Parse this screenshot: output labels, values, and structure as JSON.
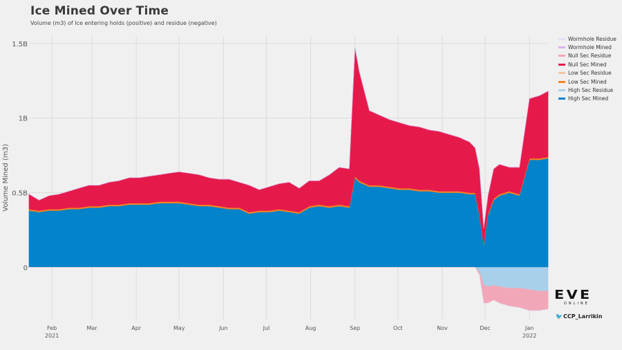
{
  "title": "Ice Mined Over Time",
  "subtitle": "Volume (m3) of Ice entering holds (positive) and residue (negative)",
  "credit": {
    "logo_text": "EVE",
    "logo_sub": "ONLINE",
    "twitter_handle": "CCP_Larrikin",
    "icon": "twitter-bird-icon"
  },
  "chart_data": {
    "type": "area",
    "title": "Ice Mined Over Time",
    "ylabel": "Volume Mined (m3)",
    "ylim": [
      -0.35,
      1.55
    ],
    "y_unit": "billions m3",
    "y_ticks": [
      {
        "value": 1.5,
        "label": "1.5B"
      },
      {
        "value": 1.0,
        "label": "1B"
      },
      {
        "value": 0.5,
        "label": "0.5B"
      },
      {
        "value": 0,
        "label": "0"
      }
    ],
    "x_range": [
      "2021-01-16",
      "2022-01-14"
    ],
    "x_ticks": [
      {
        "date": "2021-02-01",
        "label": "Feb",
        "sub": "2021"
      },
      {
        "date": "2021-03-01",
        "label": "Mar",
        "sub": ""
      },
      {
        "date": "2021-04-01",
        "label": "Apr",
        "sub": ""
      },
      {
        "date": "2021-05-01",
        "label": "May",
        "sub": ""
      },
      {
        "date": "2021-06-01",
        "label": "Jun",
        "sub": ""
      },
      {
        "date": "2021-07-01",
        "label": "Jul",
        "sub": ""
      },
      {
        "date": "2021-08-01",
        "label": "Aug",
        "sub": ""
      },
      {
        "date": "2021-09-01",
        "label": "Sep",
        "sub": ""
      },
      {
        "date": "2021-10-01",
        "label": "Oct",
        "sub": ""
      },
      {
        "date": "2021-11-01",
        "label": "Nov",
        "sub": ""
      },
      {
        "date": "2021-12-01",
        "label": "Dec",
        "sub": ""
      },
      {
        "date": "2022-01-01",
        "label": "Jan",
        "sub": "2022"
      }
    ],
    "grid": true,
    "legend_position": "right",
    "stacked": true,
    "dates": [
      "2021-01-16",
      "2021-01-23",
      "2021-01-30",
      "2021-02-06",
      "2021-02-13",
      "2021-02-20",
      "2021-02-27",
      "2021-03-06",
      "2021-03-13",
      "2021-03-20",
      "2021-03-27",
      "2021-04-03",
      "2021-04-10",
      "2021-04-17",
      "2021-04-24",
      "2021-05-01",
      "2021-05-08",
      "2021-05-15",
      "2021-05-22",
      "2021-05-29",
      "2021-06-05",
      "2021-06-12",
      "2021-06-19",
      "2021-06-26",
      "2021-07-03",
      "2021-07-10",
      "2021-07-17",
      "2021-07-24",
      "2021-07-31",
      "2021-08-07",
      "2021-08-14",
      "2021-08-21",
      "2021-08-28",
      "2021-09-01",
      "2021-09-04",
      "2021-09-11",
      "2021-09-18",
      "2021-09-25",
      "2021-10-02",
      "2021-10-09",
      "2021-10-16",
      "2021-10-23",
      "2021-10-30",
      "2021-11-06",
      "2021-11-13",
      "2021-11-20",
      "2021-11-24",
      "2021-11-27",
      "2021-11-30",
      "2021-12-03",
      "2021-12-07",
      "2021-12-11",
      "2021-12-18",
      "2021-12-25",
      "2022-01-01",
      "2022-01-08",
      "2022-01-14"
    ],
    "series": [
      {
        "name": "Wormhole Residue",
        "color": "#e2e2f7",
        "values": [
          0,
          0,
          0,
          0,
          0,
          0,
          0,
          0,
          0,
          0,
          0,
          0,
          0,
          0,
          0,
          0,
          0,
          0,
          0,
          0,
          0,
          0,
          0,
          0,
          0,
          0,
          0,
          0,
          0,
          0,
          0,
          0,
          0,
          0,
          0,
          0,
          0,
          0,
          0,
          0,
          0,
          0,
          0,
          0,
          0,
          0,
          0,
          0,
          0,
          0,
          0,
          0,
          0,
          0,
          0,
          0,
          0
        ]
      },
      {
        "name": "Wormhole Mined",
        "color": "#d9b3f0",
        "values": [
          0,
          0,
          0,
          0,
          0,
          0,
          0,
          0,
          0,
          0,
          0,
          0,
          0,
          0,
          0,
          0,
          0,
          0,
          0,
          0,
          0,
          0,
          0,
          0,
          0,
          0,
          0,
          0,
          0,
          0,
          0,
          0,
          0,
          0,
          0,
          0,
          0,
          0,
          0,
          0,
          0,
          0,
          0,
          0,
          0,
          0,
          0,
          0,
          0,
          0,
          0,
          0,
          0,
          0,
          0,
          0,
          0
        ]
      },
      {
        "name": "Null Sec Residue",
        "color": "#f1a7b8",
        "values": [
          0,
          0,
          0,
          0,
          0,
          0,
          0,
          0,
          0,
          0,
          0,
          0,
          0,
          0,
          0,
          0,
          0,
          0,
          0,
          0,
          0,
          0,
          0,
          0,
          0,
          0,
          0,
          0,
          0,
          0,
          0,
          0,
          0,
          0,
          0,
          0,
          0,
          0,
          0,
          0,
          0,
          0,
          0,
          0,
          0,
          0,
          0,
          -0.02,
          -0.12,
          -0.11,
          -0.1,
          -0.11,
          -0.12,
          -0.13,
          -0.14,
          -0.13,
          -0.12
        ]
      },
      {
        "name": "Null Sec Mined",
        "color": "#e51a4b",
        "values": [
          0.1,
          0.07,
          0.09,
          0.1,
          0.11,
          0.13,
          0.14,
          0.14,
          0.15,
          0.16,
          0.17,
          0.17,
          0.18,
          0.18,
          0.19,
          0.2,
          0.2,
          0.2,
          0.18,
          0.18,
          0.19,
          0.17,
          0.18,
          0.14,
          0.16,
          0.17,
          0.19,
          0.16,
          0.17,
          0.16,
          0.21,
          0.25,
          0.25,
          0.86,
          0.73,
          0.5,
          0.47,
          0.45,
          0.44,
          0.42,
          0.42,
          0.4,
          0.4,
          0.38,
          0.36,
          0.34,
          0.3,
          0.3,
          0.1,
          0.12,
          0.2,
          0.2,
          0.16,
          0.18,
          0.4,
          0.42,
          0.44
        ]
      },
      {
        "name": "Low Sec Residue",
        "color": "#f6c4a0",
        "values": [
          0,
          0,
          0,
          0,
          0,
          0,
          0,
          0,
          0,
          0,
          0,
          0,
          0,
          0,
          0,
          0,
          0,
          0,
          0,
          0,
          0,
          0,
          0,
          0,
          0,
          0,
          0,
          0,
          0,
          0,
          0,
          0,
          0,
          0,
          0,
          0,
          0,
          0,
          0,
          0,
          0,
          0,
          0,
          0,
          0,
          0,
          0,
          0,
          0,
          0,
          0,
          0,
          0,
          0,
          0,
          0,
          0
        ]
      },
      {
        "name": "Low Sec Mined",
        "color": "#f58220",
        "values": [
          0.01,
          0.01,
          0.01,
          0.01,
          0.01,
          0.01,
          0.01,
          0.01,
          0.01,
          0.01,
          0.01,
          0.01,
          0.01,
          0.01,
          0.01,
          0.01,
          0.01,
          0.01,
          0.01,
          0.01,
          0.01,
          0.01,
          0.01,
          0.01,
          0.01,
          0.01,
          0.01,
          0.01,
          0.01,
          0.01,
          0.01,
          0.01,
          0.01,
          0.01,
          0.01,
          0.01,
          0.01,
          0.01,
          0.01,
          0.01,
          0.01,
          0.01,
          0.01,
          0.01,
          0.01,
          0.01,
          0.01,
          0.01,
          0.01,
          0.01,
          0.01,
          0.01,
          0.01,
          0.01,
          0.01,
          0.01,
          0.01
        ]
      },
      {
        "name": "High Sec Residue",
        "color": "#a9d0ea",
        "values": [
          0,
          0,
          0,
          0,
          0,
          0,
          0,
          0,
          0,
          0,
          0,
          0,
          0,
          0,
          0,
          0,
          0,
          0,
          0,
          0,
          0,
          0,
          0,
          0,
          0,
          0,
          0,
          0,
          0,
          0,
          0,
          0,
          0,
          0,
          0,
          0,
          0,
          0,
          0,
          0,
          0,
          0,
          0,
          0,
          0,
          0,
          0,
          -0.03,
          -0.12,
          -0.13,
          -0.12,
          -0.13,
          -0.14,
          -0.14,
          -0.15,
          -0.16,
          -0.16
        ]
      },
      {
        "name": "High Sec Mined",
        "color": "#0383c9",
        "values": [
          0.38,
          0.37,
          0.38,
          0.38,
          0.39,
          0.39,
          0.4,
          0.4,
          0.41,
          0.41,
          0.42,
          0.42,
          0.42,
          0.43,
          0.43,
          0.43,
          0.42,
          0.41,
          0.41,
          0.4,
          0.39,
          0.39,
          0.36,
          0.37,
          0.37,
          0.38,
          0.37,
          0.36,
          0.4,
          0.41,
          0.4,
          0.41,
          0.4,
          0.6,
          0.57,
          0.54,
          0.54,
          0.53,
          0.52,
          0.52,
          0.51,
          0.51,
          0.5,
          0.5,
          0.5,
          0.49,
          0.49,
          0.35,
          0.15,
          0.35,
          0.45,
          0.48,
          0.5,
          0.48,
          0.72,
          0.72,
          0.73
        ]
      }
    ]
  }
}
